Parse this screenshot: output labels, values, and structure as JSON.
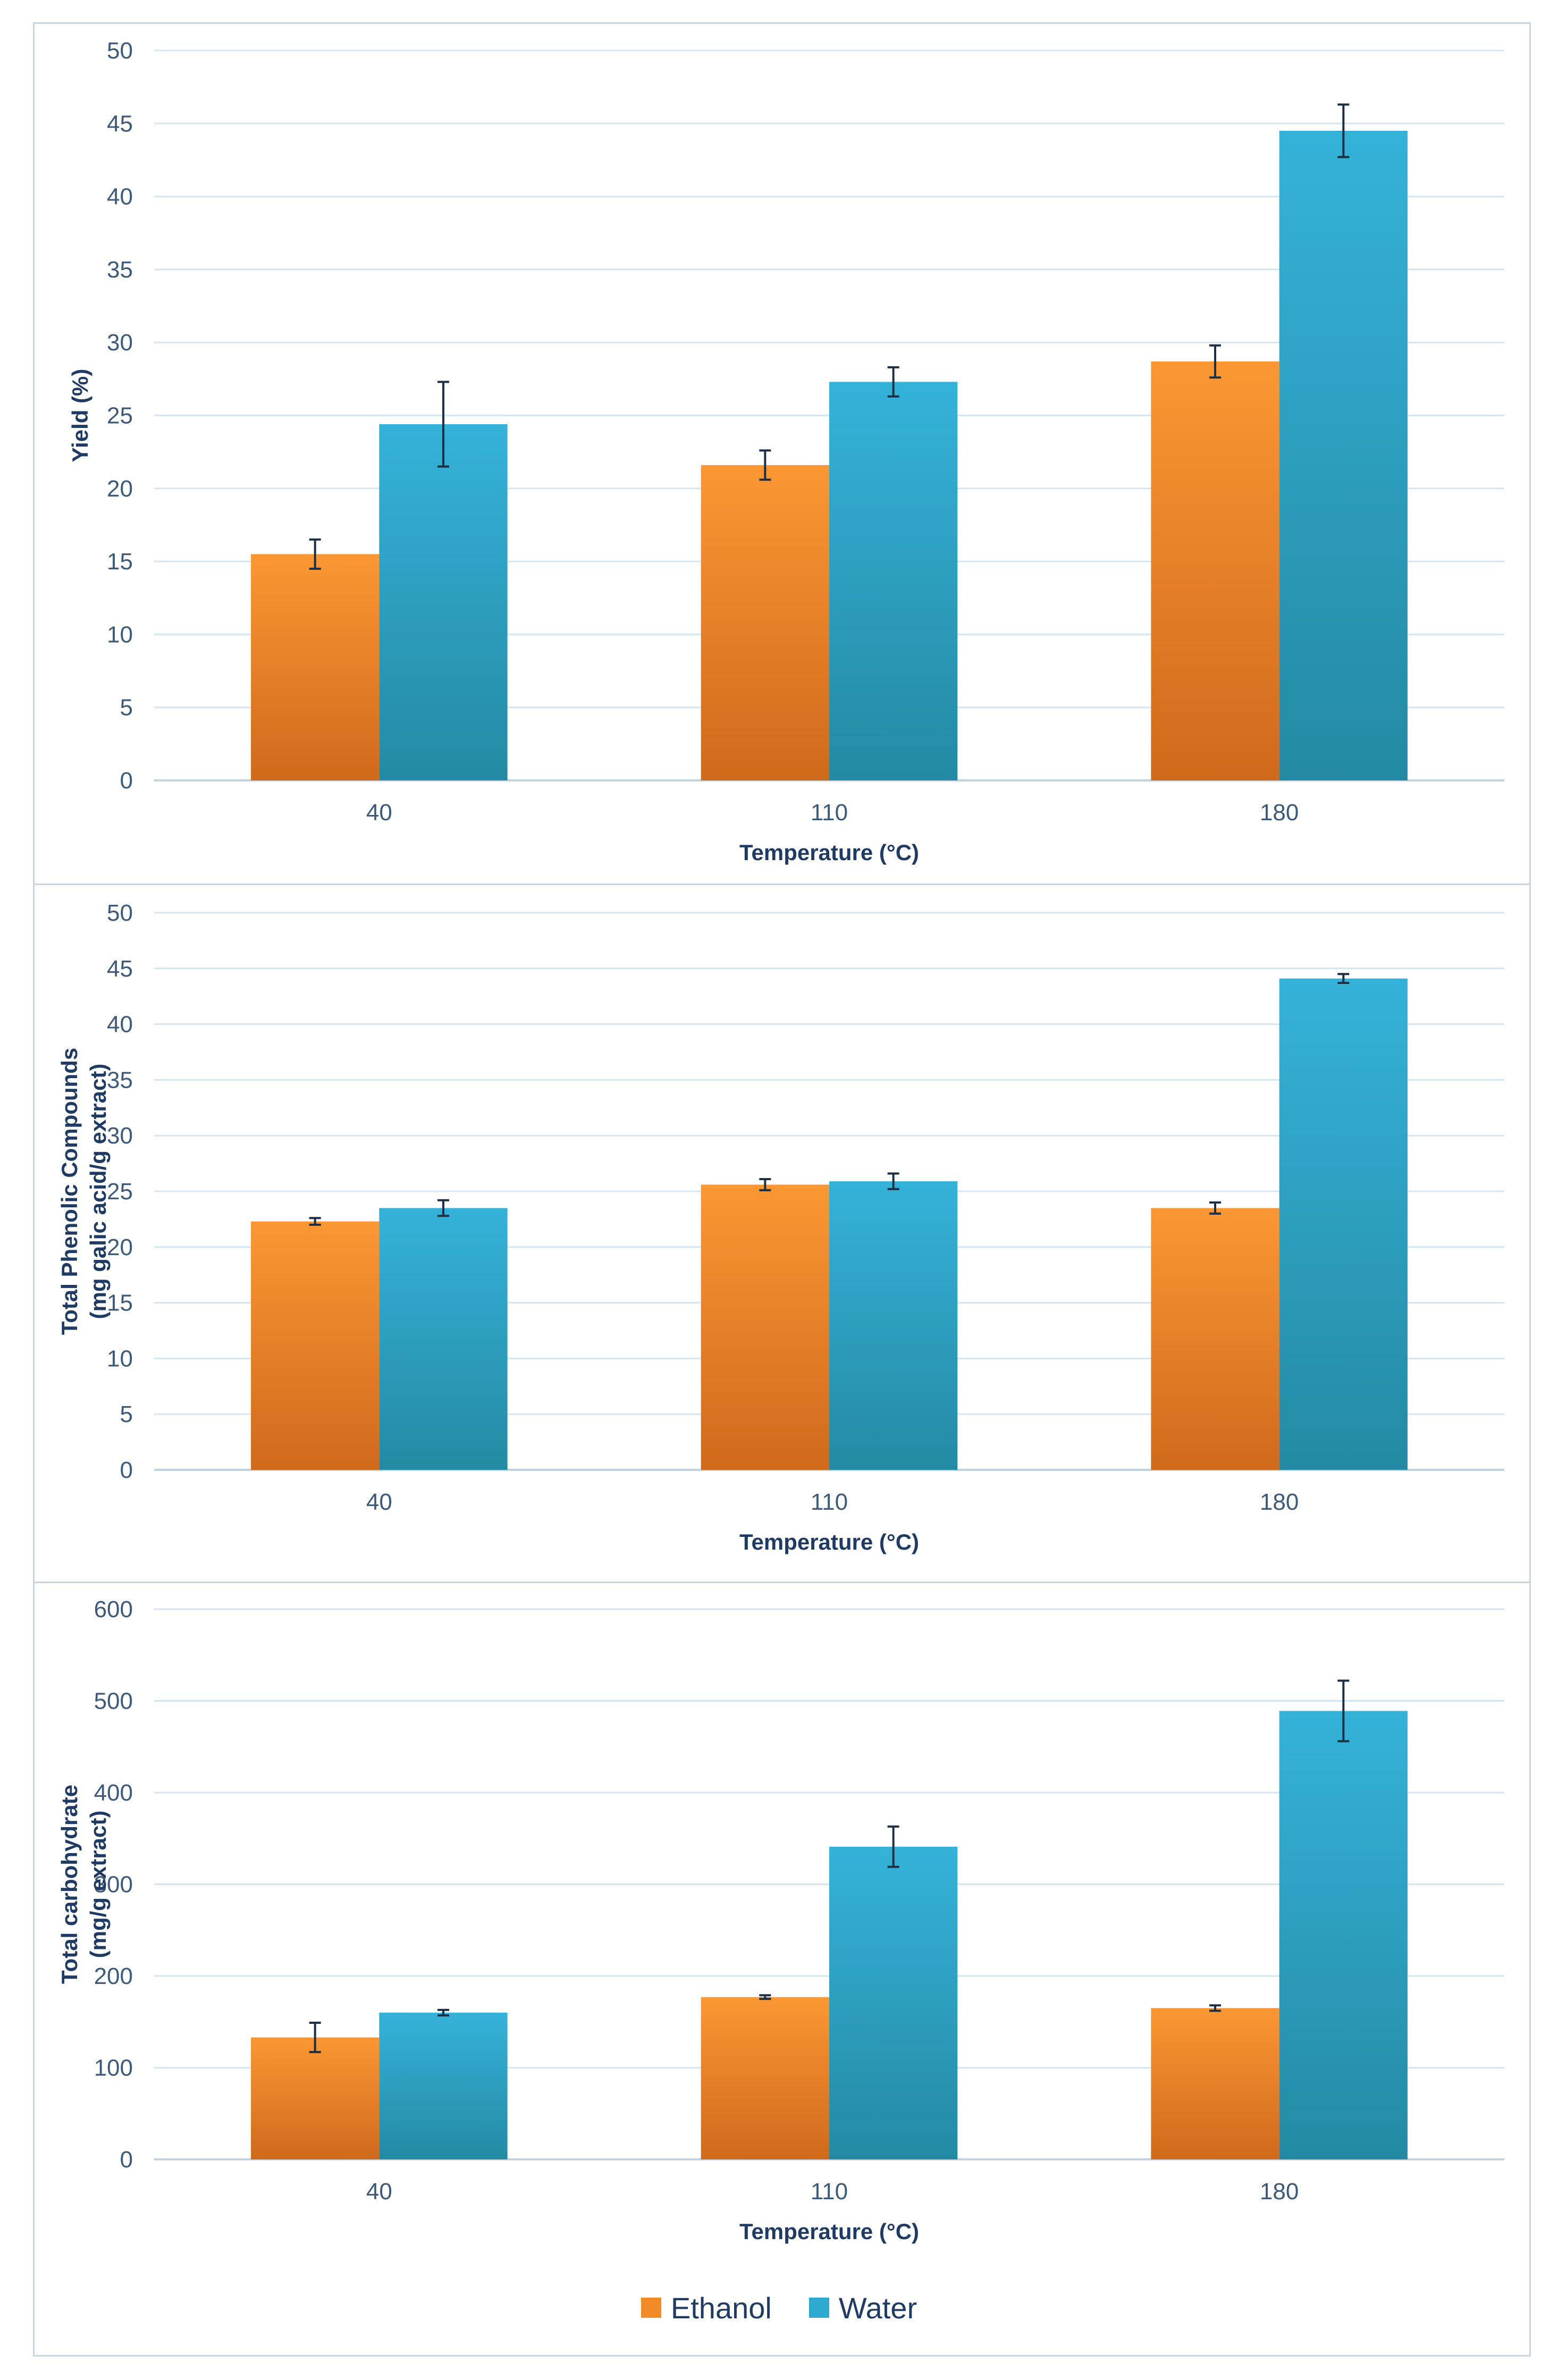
{
  "legend": {
    "items": [
      {
        "name": "Ethanol",
        "color": "#f28a26"
      },
      {
        "name": "Water",
        "color": "#2ea9cf"
      }
    ]
  },
  "colors": {
    "ethanol_top": "#fb9733",
    "ethanol_bottom": "#cf6a1c",
    "water_top": "#35b2d9",
    "water_bottom": "#248aa3",
    "grid": "#d4e6f2",
    "axis_text": "#3d5a7a",
    "title_text": "#1f3b63",
    "frame": "#c9d4df"
  },
  "chart_data": [
    {
      "id": "yield",
      "type": "bar",
      "title": "",
      "xlabel": "Temperature (°C)",
      "ylabel": [
        "Yield (%)"
      ],
      "categories": [
        "40",
        "110",
        "180"
      ],
      "ylim": [
        0,
        50
      ],
      "yticks": [
        0,
        5,
        10,
        15,
        20,
        25,
        30,
        35,
        40,
        45,
        50
      ],
      "series": [
        {
          "name": "Ethanol",
          "values": [
            15.5,
            21.6,
            28.7
          ],
          "errors": [
            1.0,
            1.0,
            1.1
          ]
        },
        {
          "name": "Water",
          "values": [
            24.4,
            27.3,
            44.5
          ],
          "errors": [
            2.9,
            1.0,
            1.8
          ]
        }
      ]
    },
    {
      "id": "phenolic",
      "type": "bar",
      "title": "",
      "xlabel": "Temperature (°C)",
      "ylabel": [
        "Total Phenolic Compounds",
        "(mg galic acid/g extract)"
      ],
      "categories": [
        "40",
        "110",
        "180"
      ],
      "ylim": [
        0,
        50
      ],
      "yticks": [
        0,
        5,
        10,
        15,
        20,
        25,
        30,
        35,
        40,
        45,
        50
      ],
      "series": [
        {
          "name": "Ethanol",
          "values": [
            22.3,
            25.6,
            23.5
          ],
          "errors": [
            0.3,
            0.5,
            0.5
          ]
        },
        {
          "name": "Water",
          "values": [
            23.5,
            25.9,
            44.1
          ],
          "errors": [
            0.7,
            0.7,
            0.4
          ]
        }
      ]
    },
    {
      "id": "carbohydrate",
      "type": "bar",
      "title": "",
      "xlabel": "Temperature (°C)",
      "ylabel": [
        "Total carbohydrate",
        "(mg/g extract)"
      ],
      "categories": [
        "40",
        "110",
        "180"
      ],
      "ylim": [
        0,
        600
      ],
      "yticks": [
        0,
        100,
        200,
        300,
        400,
        500,
        600
      ],
      "series": [
        {
          "name": "Ethanol",
          "values": [
            133,
            177,
            165
          ],
          "errors": [
            16,
            2,
            3
          ]
        },
        {
          "name": "Water",
          "values": [
            160,
            341,
            489
          ],
          "errors": [
            3,
            22,
            33
          ]
        }
      ]
    }
  ]
}
